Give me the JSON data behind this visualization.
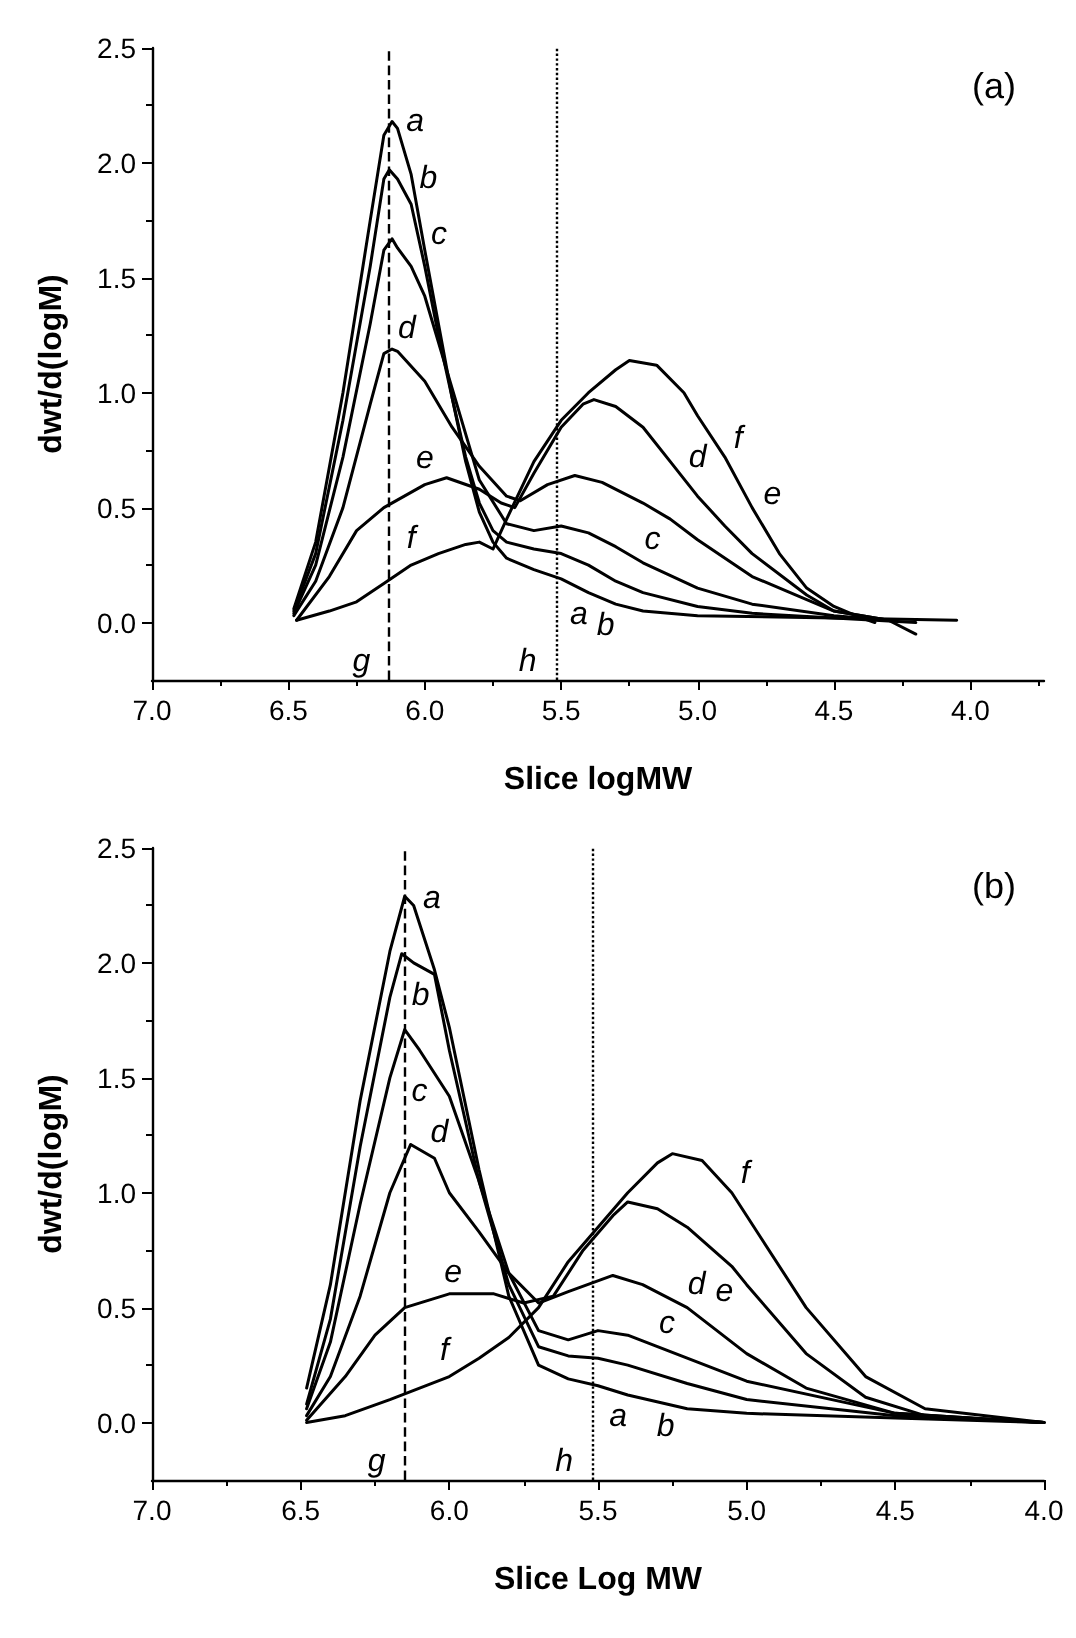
{
  "chart_data": [
    {
      "type": "line",
      "xlabel": "Slice logMW",
      "ylabel": "dwt/d(logM)",
      "xlim": [
        7.0,
        3.73
      ],
      "ylim": [
        -0.25,
        2.5
      ],
      "xticks": [
        {
          "value": 7,
          "label": "7.0"
        },
        {
          "value": 6.5,
          "label": "6.5"
        },
        {
          "value": 6,
          "label": "6.0"
        },
        {
          "value": 5.5,
          "label": "5.5"
        },
        {
          "value": 5,
          "label": "5.0"
        },
        {
          "value": 4.5,
          "label": "4.5"
        },
        {
          "value": 4,
          "label": "4.0"
        }
      ],
      "yticks": [
        {
          "value": 0,
          "label": "0.0"
        },
        {
          "value": 0.5,
          "label": "0.5"
        },
        {
          "value": 1,
          "label": "1.0"
        },
        {
          "value": 1.5,
          "label": "1.5"
        },
        {
          "value": 2,
          "label": "2.0"
        },
        {
          "value": 2.5,
          "label": "2.5"
        }
      ],
      "grid": false,
      "marker": "none",
      "line_style": "solid",
      "series": [
        {
          "color": "#000000",
          "x": [
            6.48,
            6.4,
            6.3,
            6.2,
            6.15,
            6.12,
            6.1,
            6.05,
            6.0,
            5.95,
            5.9,
            5.85,
            5.8,
            5.75,
            5.7,
            5.6,
            5.5,
            5.4,
            5.3,
            5.2,
            5.0,
            4.5,
            4.05
          ],
          "values": [
            0.06,
            0.35,
            1.0,
            1.75,
            2.12,
            2.18,
            2.15,
            1.95,
            1.62,
            1.3,
            0.98,
            0.7,
            0.48,
            0.35,
            0.28,
            0.23,
            0.19,
            0.13,
            0.08,
            0.05,
            0.03,
            0.02,
            0.01
          ]
        },
        {
          "color": "#000000",
          "x": [
            6.48,
            6.4,
            6.3,
            6.2,
            6.15,
            6.13,
            6.1,
            6.05,
            6.0,
            5.95,
            5.9,
            5.85,
            5.8,
            5.75,
            5.7,
            5.6,
            5.5,
            5.4,
            5.3,
            5.2,
            5.0,
            4.8,
            4.5,
            4.2
          ],
          "values": [
            0.05,
            0.3,
            0.88,
            1.55,
            1.93,
            1.97,
            1.93,
            1.82,
            1.55,
            1.25,
            0.98,
            0.72,
            0.52,
            0.4,
            0.35,
            0.32,
            0.3,
            0.25,
            0.18,
            0.13,
            0.07,
            0.04,
            0.02,
            0.0
          ]
        },
        {
          "color": "#000000",
          "x": [
            6.48,
            6.4,
            6.3,
            6.2,
            6.15,
            6.12,
            6.1,
            6.05,
            6.0,
            5.9,
            5.8,
            5.7,
            5.6,
            5.5,
            5.4,
            5.3,
            5.2,
            5.0,
            4.8,
            4.5,
            4.3
          ],
          "values": [
            0.04,
            0.25,
            0.72,
            1.3,
            1.62,
            1.67,
            1.63,
            1.55,
            1.42,
            1.02,
            0.62,
            0.43,
            0.4,
            0.42,
            0.39,
            0.33,
            0.26,
            0.15,
            0.08,
            0.03,
            0.01
          ]
        },
        {
          "color": "#000000",
          "x": [
            6.48,
            6.4,
            6.3,
            6.2,
            6.15,
            6.12,
            6.1,
            6.0,
            5.9,
            5.8,
            5.7,
            5.65,
            5.55,
            5.45,
            5.35,
            5.2,
            5.1,
            5.0,
            4.8,
            4.6,
            4.5,
            4.3
          ],
          "values": [
            0.03,
            0.18,
            0.5,
            0.95,
            1.17,
            1.19,
            1.18,
            1.05,
            0.85,
            0.68,
            0.55,
            0.53,
            0.6,
            0.64,
            0.61,
            0.52,
            0.45,
            0.36,
            0.2,
            0.1,
            0.05,
            0.01
          ]
        },
        {
          "color": "#000000",
          "x": [
            6.47,
            6.35,
            6.25,
            6.15,
            6.0,
            5.92,
            5.8,
            5.72,
            5.67,
            5.6,
            5.5,
            5.42,
            5.38,
            5.3,
            5.2,
            5.1,
            5.0,
            4.9,
            4.8,
            4.6,
            4.5,
            4.3,
            4.2
          ],
          "values": [
            0.01,
            0.2,
            0.4,
            0.5,
            0.6,
            0.63,
            0.58,
            0.52,
            0.5,
            0.65,
            0.85,
            0.95,
            0.97,
            0.94,
            0.85,
            0.7,
            0.55,
            0.42,
            0.3,
            0.12,
            0.05,
            0.01,
            -0.05
          ]
        },
        {
          "color": "#000000",
          "x": [
            6.47,
            6.35,
            6.25,
            6.15,
            6.05,
            5.95,
            5.85,
            5.8,
            5.75,
            5.7,
            5.6,
            5.5,
            5.4,
            5.3,
            5.25,
            5.15,
            5.05,
            5.0,
            4.9,
            4.8,
            4.7,
            4.6,
            4.5,
            4.4,
            4.35
          ],
          "values": [
            0.01,
            0.05,
            0.09,
            0.17,
            0.25,
            0.3,
            0.34,
            0.35,
            0.32,
            0.45,
            0.7,
            0.88,
            1.0,
            1.1,
            1.14,
            1.12,
            1.0,
            0.9,
            0.72,
            0.5,
            0.3,
            0.15,
            0.07,
            0.02,
            0.0
          ]
        }
      ],
      "ref_lines": [
        {
          "axis": "x",
          "value": 6.13,
          "label": "g",
          "line_style": "dashed",
          "color": "#000000"
        },
        {
          "axis": "x",
          "value": 5.52,
          "label": "h",
          "line_style": "dotted",
          "color": "#000000"
        }
      ],
      "annotations": [
        "(a)",
        {
          "text": "a",
          "x": 6.12,
          "y": 2.18
        },
        {
          "text": "b",
          "x": 6.1,
          "y": 1.93
        },
        {
          "text": "c",
          "x": 6.1,
          "y": 1.63
        },
        {
          "text": "d",
          "x": 6.1,
          "y": 1.18
        },
        {
          "text": "e",
          "x": 6.0,
          "y": 0.6
        },
        {
          "text": "f",
          "x": 6.05,
          "y": 0.25
        },
        {
          "text": "a",
          "x": 5.4,
          "y": 0.13
        },
        {
          "text": "b",
          "x": 5.3,
          "y": 0.18
        },
        {
          "text": "c",
          "x": 5.2,
          "y": 0.26
        },
        {
          "text": "d",
          "x": 5.0,
          "y": 0.36
        },
        {
          "text": "e",
          "x": 4.9,
          "y": 0.42
        },
        {
          "text": "f",
          "x": 4.9,
          "y": 0.72
        }
      ]
    },
    {
      "type": "line",
      "xlabel": "Slice Log MW",
      "ylabel": "dwt/d(logM)",
      "xlim": [
        7.0,
        4.0
      ],
      "ylim": [
        -0.25,
        2.5
      ],
      "xticks": [
        {
          "value": 7,
          "label": "7.0"
        },
        {
          "value": 6.5,
          "label": "6.5"
        },
        {
          "value": 6,
          "label": "6.0"
        },
        {
          "value": 5.5,
          "label": "5.5"
        },
        {
          "value": 5,
          "label": "5.0"
        },
        {
          "value": 4.5,
          "label": "4.5"
        },
        {
          "value": 4,
          "label": "4.0"
        }
      ],
      "yticks": [
        {
          "value": 0,
          "label": "0.0"
        },
        {
          "value": 0.5,
          "label": "0.5"
        },
        {
          "value": 1,
          "label": "1.0"
        },
        {
          "value": 1.5,
          "label": "1.5"
        },
        {
          "value": 2,
          "label": "2.0"
        },
        {
          "value": 2.5,
          "label": "2.5"
        }
      ],
      "grid": false,
      "marker": "none",
      "line_style": "solid",
      "series": [
        {
          "color": "#000000",
          "x": [
            6.48,
            6.4,
            6.3,
            6.2,
            6.15,
            6.12,
            6.05,
            6.0,
            5.9,
            5.8,
            5.7,
            5.6,
            5.5,
            5.4,
            5.2,
            5.0,
            4.5,
            4.0
          ],
          "values": [
            0.15,
            0.6,
            1.4,
            2.05,
            2.29,
            2.25,
            1.97,
            1.72,
            1.1,
            0.55,
            0.25,
            0.19,
            0.16,
            0.12,
            0.06,
            0.04,
            0.02,
            0.0
          ]
        },
        {
          "color": "#000000",
          "x": [
            6.48,
            6.4,
            6.3,
            6.2,
            6.16,
            6.12,
            6.05,
            6.0,
            5.9,
            5.8,
            5.7,
            5.6,
            5.5,
            5.4,
            5.2,
            5.0,
            4.5,
            4.0
          ],
          "values": [
            0.08,
            0.45,
            1.2,
            1.85,
            2.04,
            2.0,
            1.95,
            1.62,
            1.05,
            0.6,
            0.33,
            0.29,
            0.28,
            0.25,
            0.17,
            0.1,
            0.03,
            0.0
          ]
        },
        {
          "color": "#000000",
          "x": [
            6.48,
            6.4,
            6.3,
            6.2,
            6.15,
            6.1,
            6.0,
            5.9,
            5.8,
            5.7,
            5.6,
            5.5,
            5.4,
            5.3,
            5.0,
            4.5,
            4.0
          ],
          "values": [
            0.06,
            0.35,
            0.95,
            1.5,
            1.71,
            1.62,
            1.42,
            1.05,
            0.65,
            0.4,
            0.36,
            0.4,
            0.38,
            0.33,
            0.18,
            0.04,
            0.0
          ]
        },
        {
          "color": "#000000",
          "x": [
            6.48,
            6.4,
            6.3,
            6.2,
            6.13,
            6.05,
            6.0,
            5.9,
            5.8,
            5.7,
            5.6,
            5.45,
            5.35,
            5.2,
            5.0,
            4.8,
            4.5,
            4.0
          ],
          "values": [
            0.03,
            0.2,
            0.55,
            1.0,
            1.21,
            1.15,
            1.0,
            0.83,
            0.65,
            0.52,
            0.57,
            0.64,
            0.6,
            0.5,
            0.3,
            0.15,
            0.04,
            0.0
          ]
        },
        {
          "color": "#000000",
          "x": [
            6.48,
            6.35,
            6.25,
            6.15,
            6.0,
            5.85,
            5.75,
            5.65,
            5.55,
            5.45,
            5.4,
            5.3,
            5.2,
            5.05,
            5.0,
            4.8,
            4.6,
            4.4,
            4.0
          ],
          "values": [
            0.01,
            0.2,
            0.38,
            0.5,
            0.56,
            0.56,
            0.52,
            0.55,
            0.75,
            0.9,
            0.96,
            0.93,
            0.85,
            0.68,
            0.6,
            0.3,
            0.11,
            0.03,
            0.0
          ]
        },
        {
          "color": "#000000",
          "x": [
            6.48,
            6.35,
            6.2,
            6.0,
            5.9,
            5.8,
            5.7,
            5.6,
            5.5,
            5.4,
            5.3,
            5.25,
            5.15,
            5.05,
            4.95,
            4.8,
            4.6,
            4.4,
            4.0
          ],
          "values": [
            0.0,
            0.03,
            0.1,
            0.2,
            0.28,
            0.37,
            0.5,
            0.7,
            0.85,
            1.0,
            1.13,
            1.17,
            1.14,
            1.0,
            0.8,
            0.5,
            0.2,
            0.06,
            0.0
          ]
        }
      ],
      "ref_lines": [
        {
          "axis": "x",
          "value": 6.15,
          "label": "g",
          "line_style": "dashed",
          "color": "#000000"
        },
        {
          "axis": "x",
          "value": 5.52,
          "label": "h",
          "line_style": "dotted",
          "color": "#000000"
        }
      ],
      "annotations": [
        "(b)",
        {
          "text": "a",
          "x": 6.12,
          "y": 2.25
        },
        {
          "text": "b",
          "x": 6.12,
          "y": 2.0
        },
        {
          "text": "c",
          "x": 6.1,
          "y": 1.62
        },
        {
          "text": "d",
          "x": 6.05,
          "y": 1.15
        },
        {
          "text": "e",
          "x": 6.0,
          "y": 0.56
        },
        {
          "text": "f",
          "x": 6.0,
          "y": 0.2
        },
        {
          "text": "a",
          "x": 5.4,
          "y": 0.12
        },
        {
          "text": "b",
          "x": 5.2,
          "y": 0.17
        },
        {
          "text": "c",
          "x": 5.3,
          "y": 0.33
        },
        {
          "text": "d",
          "x": 5.2,
          "y": 0.5
        },
        {
          "text": "e",
          "x": 5.0,
          "y": 0.6
        },
        {
          "text": "f",
          "x": 5.05,
          "y": 1.0
        }
      ]
    }
  ]
}
